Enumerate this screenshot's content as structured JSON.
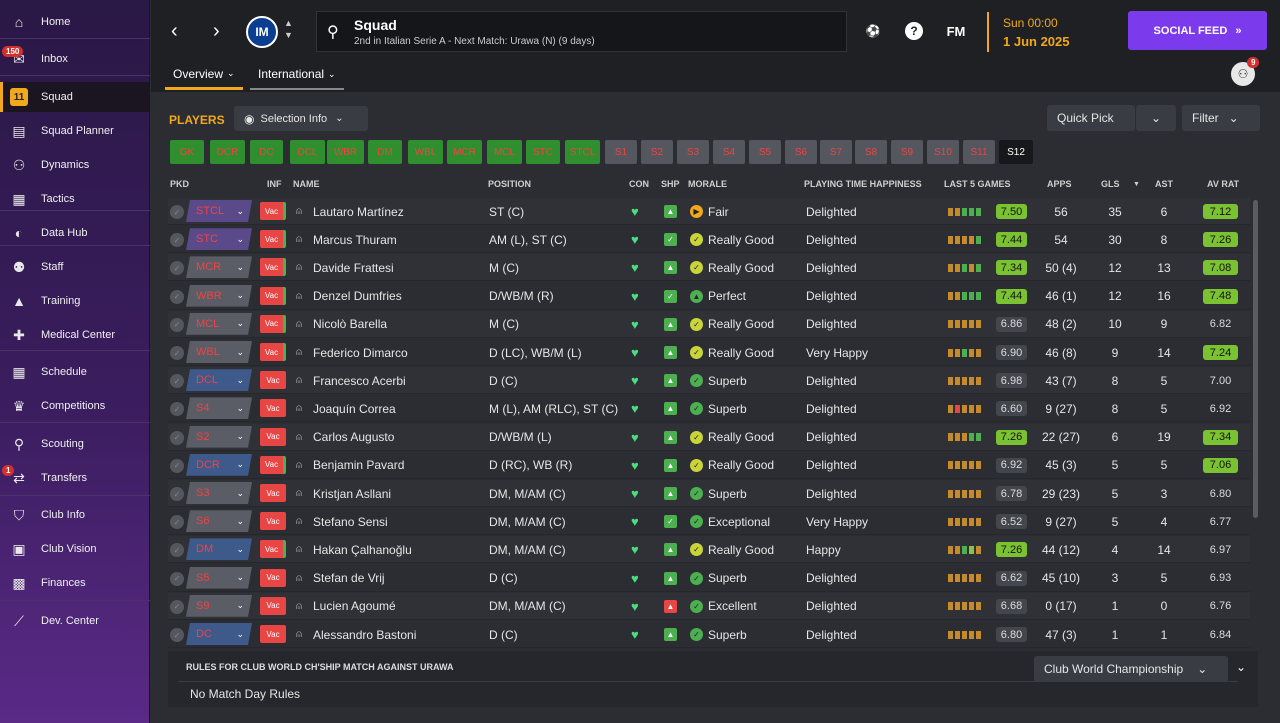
{
  "sidebar": {
    "items": [
      {
        "label": "Home",
        "icon": "home-icon",
        "glyph": "⌂"
      },
      {
        "label": "Inbox",
        "icon": "inbox-icon",
        "glyph": "✉",
        "badge": "150"
      },
      {
        "label": "Squad",
        "icon": "squad-icon",
        "glyph": "11",
        "active": true
      },
      {
        "label": "Squad Planner",
        "icon": "clipboard-icon",
        "glyph": "▤"
      },
      {
        "label": "Dynamics",
        "icon": "dynamics-icon",
        "glyph": "⚇"
      },
      {
        "label": "Tactics",
        "icon": "tactics-icon",
        "glyph": "▦"
      },
      {
        "label": "Data Hub",
        "icon": "data-hub-icon",
        "glyph": "◐"
      },
      {
        "label": "Staff",
        "icon": "staff-icon",
        "glyph": "⚉"
      },
      {
        "label": "Training",
        "icon": "training-icon",
        "glyph": "▲"
      },
      {
        "label": "Medical Center",
        "icon": "medical-icon",
        "glyph": "✚"
      },
      {
        "label": "Schedule",
        "icon": "calendar-icon",
        "glyph": "▦"
      },
      {
        "label": "Competitions",
        "icon": "trophy-icon",
        "glyph": "♛"
      },
      {
        "label": "Scouting",
        "icon": "scouting-icon",
        "glyph": "⚲"
      },
      {
        "label": "Transfers",
        "icon": "transfers-icon",
        "glyph": "⇄",
        "badge": "1"
      },
      {
        "label": "Club Info",
        "icon": "shield-icon",
        "glyph": "⛉"
      },
      {
        "label": "Club Vision",
        "icon": "briefcase-icon",
        "glyph": "▣"
      },
      {
        "label": "Finances",
        "icon": "finances-icon",
        "glyph": "▩"
      },
      {
        "label": "Dev. Center",
        "icon": "dev-center-icon",
        "glyph": "⟋"
      }
    ]
  },
  "header": {
    "title": "Squad",
    "subtitle": "2nd in Italian Serie A - Next Match: Urawa (N) (9 days)",
    "club_logo": "IM",
    "fm": "FM",
    "date_line1": "Sun 00:00",
    "date_line2": "1 Jun 2025",
    "social": "SOCIAL FEED",
    "notif_count": "9",
    "tabs": [
      "Overview",
      "International"
    ]
  },
  "players_title": "PLAYERS",
  "buttons": {
    "selection_info": "Selection Info",
    "quick_pick": "Quick Pick",
    "filter": "Filter"
  },
  "chips": [
    "GK",
    "DCR",
    "DC",
    "DCL",
    "WBR",
    "DM",
    "WBL",
    "MCR",
    "MCL",
    "STC",
    "STCL",
    "S1",
    "S2",
    "S3",
    "S4",
    "S5",
    "S6",
    "S7",
    "S8",
    "S9",
    "S10",
    "S11",
    "S12"
  ],
  "columns": {
    "pkd": "PKD",
    "inf": "INF",
    "name": "NAME",
    "position": "POSITION",
    "con": "CON",
    "shp": "SHP",
    "morale": "MORALE",
    "pth": "PLAYING TIME HAPPINESS",
    "last5": "LAST 5 GAMES",
    "apps": "APPS",
    "gls": "GLS",
    "ast": "AST",
    "avrat": "AV RAT"
  },
  "inf_label": "Vac",
  "players": [
    {
      "pkd": "STCL",
      "name": "Lautaro Martínez",
      "position": "ST (C)",
      "morale": "Fair",
      "pth": "Delighted",
      "last5": "7.50",
      "apps": "56",
      "gls": "35",
      "ast": "6",
      "avrat": "7.12"
    },
    {
      "pkd": "STC",
      "name": "Marcus Thuram",
      "position": "AM (L), ST (C)",
      "morale": "Really Good",
      "pth": "Delighted",
      "last5": "7.44",
      "apps": "54",
      "gls": "30",
      "ast": "8",
      "avrat": "7.26"
    },
    {
      "pkd": "MCR",
      "name": "Davide Frattesi",
      "position": "M (C)",
      "morale": "Really Good",
      "pth": "Delighted",
      "last5": "7.34",
      "apps": "50 (4)",
      "gls": "12",
      "ast": "13",
      "avrat": "7.08"
    },
    {
      "pkd": "WBR",
      "name": "Denzel Dumfries",
      "position": "D/WB/M (R)",
      "morale": "Perfect",
      "pth": "Delighted",
      "last5": "7.44",
      "apps": "46 (1)",
      "gls": "12",
      "ast": "16",
      "avrat": "7.48"
    },
    {
      "pkd": "MCL",
      "name": "Nicolò Barella",
      "position": "M (C)",
      "morale": "Really Good",
      "pth": "Delighted",
      "last5": "6.86",
      "apps": "48 (2)",
      "gls": "10",
      "ast": "9",
      "avrat": "6.82"
    },
    {
      "pkd": "WBL",
      "name": "Federico Dimarco",
      "position": "D (LC), WB/M (L)",
      "morale": "Really Good",
      "pth": "Very Happy",
      "last5": "6.90",
      "apps": "46 (8)",
      "gls": "9",
      "ast": "14",
      "avrat": "7.24"
    },
    {
      "pkd": "DCL",
      "name": "Francesco Acerbi",
      "position": "D (C)",
      "morale": "Superb",
      "pth": "Delighted",
      "last5": "6.98",
      "apps": "43 (7)",
      "gls": "8",
      "ast": "5",
      "avrat": "7.00"
    },
    {
      "pkd": "S4",
      "name": "Joaquín Correa",
      "position": "M (L), AM (RLC), ST (C)",
      "morale": "Superb",
      "pth": "Delighted",
      "last5": "6.60",
      "apps": "9 (27)",
      "gls": "8",
      "ast": "5",
      "avrat": "6.92"
    },
    {
      "pkd": "S2",
      "name": "Carlos Augusto",
      "position": "D/WB/M (L)",
      "morale": "Really Good",
      "pth": "Delighted",
      "last5": "7.26",
      "apps": "22 (27)",
      "gls": "6",
      "ast": "19",
      "avrat": "7.34"
    },
    {
      "pkd": "DCR",
      "name": "Benjamin Pavard",
      "position": "D (RC), WB (R)",
      "morale": "Really Good",
      "pth": "Delighted",
      "last5": "6.92",
      "apps": "45 (3)",
      "gls": "5",
      "ast": "5",
      "avrat": "7.06"
    },
    {
      "pkd": "S3",
      "name": "Kristjan Asllani",
      "position": "DM, M/AM (C)",
      "morale": "Superb",
      "pth": "Delighted",
      "last5": "6.78",
      "apps": "29 (23)",
      "gls": "5",
      "ast": "3",
      "avrat": "6.80"
    },
    {
      "pkd": "S6",
      "name": "Stefano Sensi",
      "position": "DM, M/AM (C)",
      "morale": "Exceptional",
      "pth": "Very Happy",
      "last5": "6.52",
      "apps": "9 (27)",
      "gls": "5",
      "ast": "4",
      "avrat": "6.77"
    },
    {
      "pkd": "DM",
      "name": "Hakan Çalhanoğlu",
      "position": "DM, M/AM (C)",
      "morale": "Really Good",
      "pth": "Happy",
      "last5": "7.26",
      "apps": "44 (12)",
      "gls": "4",
      "ast": "14",
      "avrat": "6.97"
    },
    {
      "pkd": "S5",
      "name": "Stefan de Vrij",
      "position": "D (C)",
      "morale": "Superb",
      "pth": "Delighted",
      "last5": "6.62",
      "apps": "45 (10)",
      "gls": "3",
      "ast": "5",
      "avrat": "6.93"
    },
    {
      "pkd": "S9",
      "name": "Lucien Agoumé",
      "position": "DM, M/AM (C)",
      "morale": "Excellent",
      "pth": "Delighted",
      "last5": "6.68",
      "apps": "0 (17)",
      "gls": "1",
      "ast": "0",
      "avrat": "6.76"
    },
    {
      "pkd": "DC",
      "name": "Alessandro Bastoni",
      "position": "D (C)",
      "morale": "Superb",
      "pth": "Delighted",
      "last5": "6.80",
      "apps": "47 (3)",
      "gls": "1",
      "ast": "1",
      "avrat": "6.84"
    }
  ],
  "rules": {
    "title": "RULES FOR CLUB WORLD CH'SHIP MATCH AGAINST URAWA",
    "value": "No Match Day Rules",
    "competition": "Club World Championship"
  }
}
